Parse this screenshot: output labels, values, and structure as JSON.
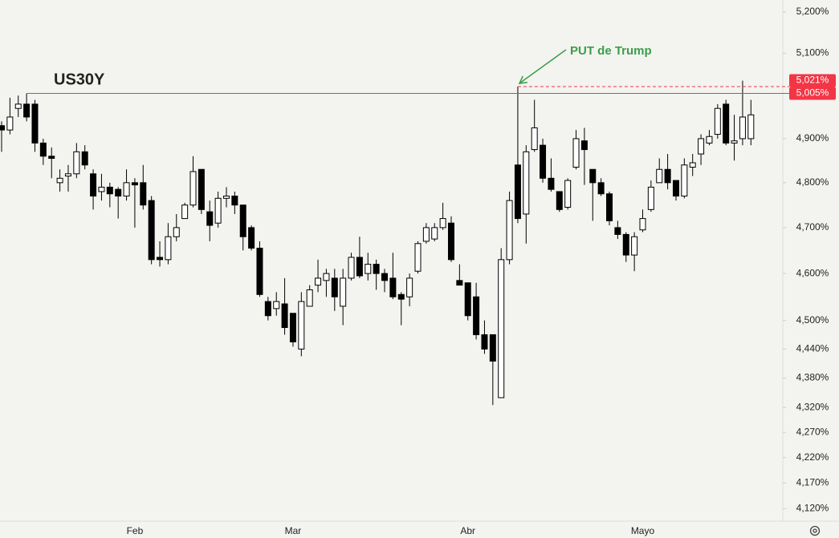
{
  "chart_data": {
    "type": "candlestick",
    "title": "US30Y",
    "annotation": "PUT de Trump",
    "log_scale": true,
    "up_color": "#ffffff",
    "down_color": "#000000",
    "level_color": "#f23645",
    "annotation_color": "#3a9e4a",
    "categories": [
      null,
      null,
      null,
      null,
      null,
      null,
      null,
      null,
      null,
      null,
      null,
      null,
      null,
      null,
      null,
      null,
      "Feb",
      null,
      null,
      null,
      null,
      null,
      null,
      null,
      null,
      null,
      null,
      null,
      null,
      null,
      null,
      null,
      null,
      null,
      null,
      "Mar",
      null,
      null,
      null,
      null,
      null,
      null,
      null,
      null,
      null,
      null,
      null,
      null,
      null,
      null,
      null,
      null,
      null,
      null,
      null,
      null,
      "Abr",
      null,
      null,
      null,
      null,
      null,
      null,
      null,
      null,
      null,
      null,
      null,
      null,
      null,
      null,
      null,
      null,
      null,
      null,
      null,
      null,
      "Mayo",
      null,
      null,
      null,
      null,
      null,
      null,
      null,
      null,
      null,
      null,
      null,
      null,
      null
    ],
    "open": [
      4.93,
      4.92,
      4.97,
      4.98,
      4.98,
      4.89,
      4.86,
      4.8,
      4.815,
      4.82,
      4.87,
      4.82,
      4.78,
      4.79,
      4.785,
      4.77,
      4.8,
      4.8,
      4.76,
      4.635,
      4.63,
      4.68,
      4.72,
      4.75,
      4.83,
      4.735,
      4.71,
      4.765,
      4.77,
      4.75,
      4.7,
      4.655,
      4.54,
      4.525,
      4.535,
      4.515,
      4.44,
      4.53,
      4.575,
      4.585,
      4.59,
      4.53,
      4.59,
      4.635,
      4.6,
      4.62,
      4.6,
      4.59,
      4.555,
      4.55,
      4.605,
      4.67,
      4.675,
      4.7,
      4.71,
      4.585,
      4.58,
      4.55,
      4.47,
      4.47,
      4.34,
      4.63,
      4.84,
      4.73,
      4.875,
      4.885,
      4.81,
      4.78,
      4.745,
      4.835,
      4.895,
      4.83,
      4.8,
      4.775,
      4.7,
      4.685,
      4.64,
      4.695,
      4.74,
      4.8,
      4.83,
      4.805,
      4.77,
      4.835,
      4.865,
      4.89,
      4.91,
      4.98,
      4.89,
      4.9,
      4.9
    ],
    "high": [
      4.94,
      4.995,
      5.0,
      5.005,
      4.99,
      4.9,
      4.88,
      4.83,
      4.84,
      4.89,
      4.885,
      4.83,
      4.82,
      4.8,
      4.79,
      4.83,
      4.81,
      4.84,
      4.77,
      4.67,
      4.71,
      4.73,
      4.755,
      4.86,
      4.83,
      4.76,
      4.78,
      4.79,
      4.78,
      4.75,
      4.705,
      4.67,
      4.55,
      4.56,
      4.59,
      4.515,
      4.56,
      4.575,
      4.63,
      4.61,
      4.61,
      4.61,
      4.645,
      4.68,
      4.645,
      4.63,
      4.61,
      4.645,
      4.56,
      4.6,
      4.67,
      4.71,
      4.71,
      4.755,
      4.725,
      4.62,
      4.58,
      4.58,
      4.5,
      4.47,
      4.655,
      4.78,
      5.021,
      4.885,
      4.99,
      4.9,
      4.855,
      4.78,
      4.81,
      4.92,
      4.925,
      4.83,
      4.81,
      4.78,
      4.715,
      4.69,
      4.69,
      4.74,
      4.805,
      4.855,
      4.865,
      4.805,
      4.855,
      4.865,
      4.91,
      4.92,
      4.98,
      4.99,
      4.955,
      5.035,
      4.99
    ],
    "low": [
      4.87,
      4.91,
      4.95,
      4.94,
      4.87,
      4.84,
      4.81,
      4.78,
      4.78,
      4.81,
      4.83,
      4.74,
      4.76,
      4.745,
      4.72,
      4.76,
      4.7,
      4.74,
      4.62,
      4.615,
      4.62,
      4.67,
      4.72,
      4.745,
      4.73,
      4.67,
      4.7,
      4.745,
      4.73,
      4.65,
      4.65,
      4.55,
      4.5,
      4.51,
      4.47,
      4.445,
      4.425,
      4.53,
      4.56,
      4.55,
      4.52,
      4.49,
      4.585,
      4.59,
      4.585,
      4.565,
      4.56,
      4.545,
      4.49,
      4.53,
      4.6,
      4.665,
      4.67,
      4.695,
      4.625,
      4.575,
      4.5,
      4.46,
      4.43,
      4.325,
      4.34,
      4.62,
      4.71,
      4.665,
      4.87,
      4.8,
      4.78,
      4.735,
      4.74,
      4.83,
      4.795,
      4.715,
      4.77,
      4.705,
      4.675,
      4.625,
      4.605,
      4.69,
      4.735,
      4.8,
      4.785,
      4.76,
      4.765,
      4.815,
      4.84,
      4.885,
      4.9,
      4.885,
      4.85,
      4.885,
      4.885
    ],
    "close": [
      4.92,
      4.95,
      4.98,
      4.95,
      4.89,
      4.86,
      4.855,
      4.81,
      4.82,
      4.87,
      4.84,
      4.77,
      4.79,
      4.775,
      4.77,
      4.8,
      4.795,
      4.75,
      4.63,
      4.63,
      4.68,
      4.7,
      4.75,
      4.825,
      4.74,
      4.705,
      4.765,
      4.77,
      4.75,
      4.68,
      4.655,
      4.555,
      4.51,
      4.54,
      4.485,
      4.455,
      4.54,
      4.565,
      4.59,
      4.6,
      4.55,
      4.59,
      4.635,
      4.595,
      4.62,
      4.6,
      4.585,
      4.55,
      4.545,
      4.59,
      4.665,
      4.7,
      4.7,
      4.72,
      4.63,
      4.575,
      4.51,
      4.47,
      4.44,
      4.415,
      4.63,
      4.76,
      4.72,
      4.87,
      4.925,
      4.81,
      4.785,
      4.74,
      4.805,
      4.9,
      4.875,
      4.8,
      4.775,
      4.715,
      4.685,
      4.64,
      4.68,
      4.72,
      4.79,
      4.83,
      4.8,
      4.77,
      4.84,
      4.845,
      4.9,
      4.905,
      4.97,
      4.89,
      4.895,
      4.95,
      4.955
    ],
    "levels": [
      {
        "value": 5.021,
        "label": "5,021%",
        "style": "dashed"
      },
      {
        "value": 5.005,
        "label": "5,005%",
        "style": "solid"
      }
    ],
    "ylim": [
      4.096,
      5.229
    ],
    "yticks": [
      {
        "value": 5.2,
        "label": "5,200%"
      },
      {
        "value": 5.1,
        "label": "5,100%"
      },
      {
        "value": 4.9,
        "label": "4,900%"
      },
      {
        "value": 4.8,
        "label": "4,800%"
      },
      {
        "value": 4.7,
        "label": "4,700%"
      },
      {
        "value": 4.6,
        "label": "4,600%"
      },
      {
        "value": 4.5,
        "label": "4,500%"
      },
      {
        "value": 4.44,
        "label": "4,440%"
      },
      {
        "value": 4.38,
        "label": "4,380%"
      },
      {
        "value": 4.32,
        "label": "4,320%"
      },
      {
        "value": 4.27,
        "label": "4,270%"
      },
      {
        "value": 4.22,
        "label": "4,220%"
      },
      {
        "value": 4.17,
        "label": "4,170%"
      },
      {
        "value": 4.12,
        "label": "4,120%"
      }
    ]
  }
}
